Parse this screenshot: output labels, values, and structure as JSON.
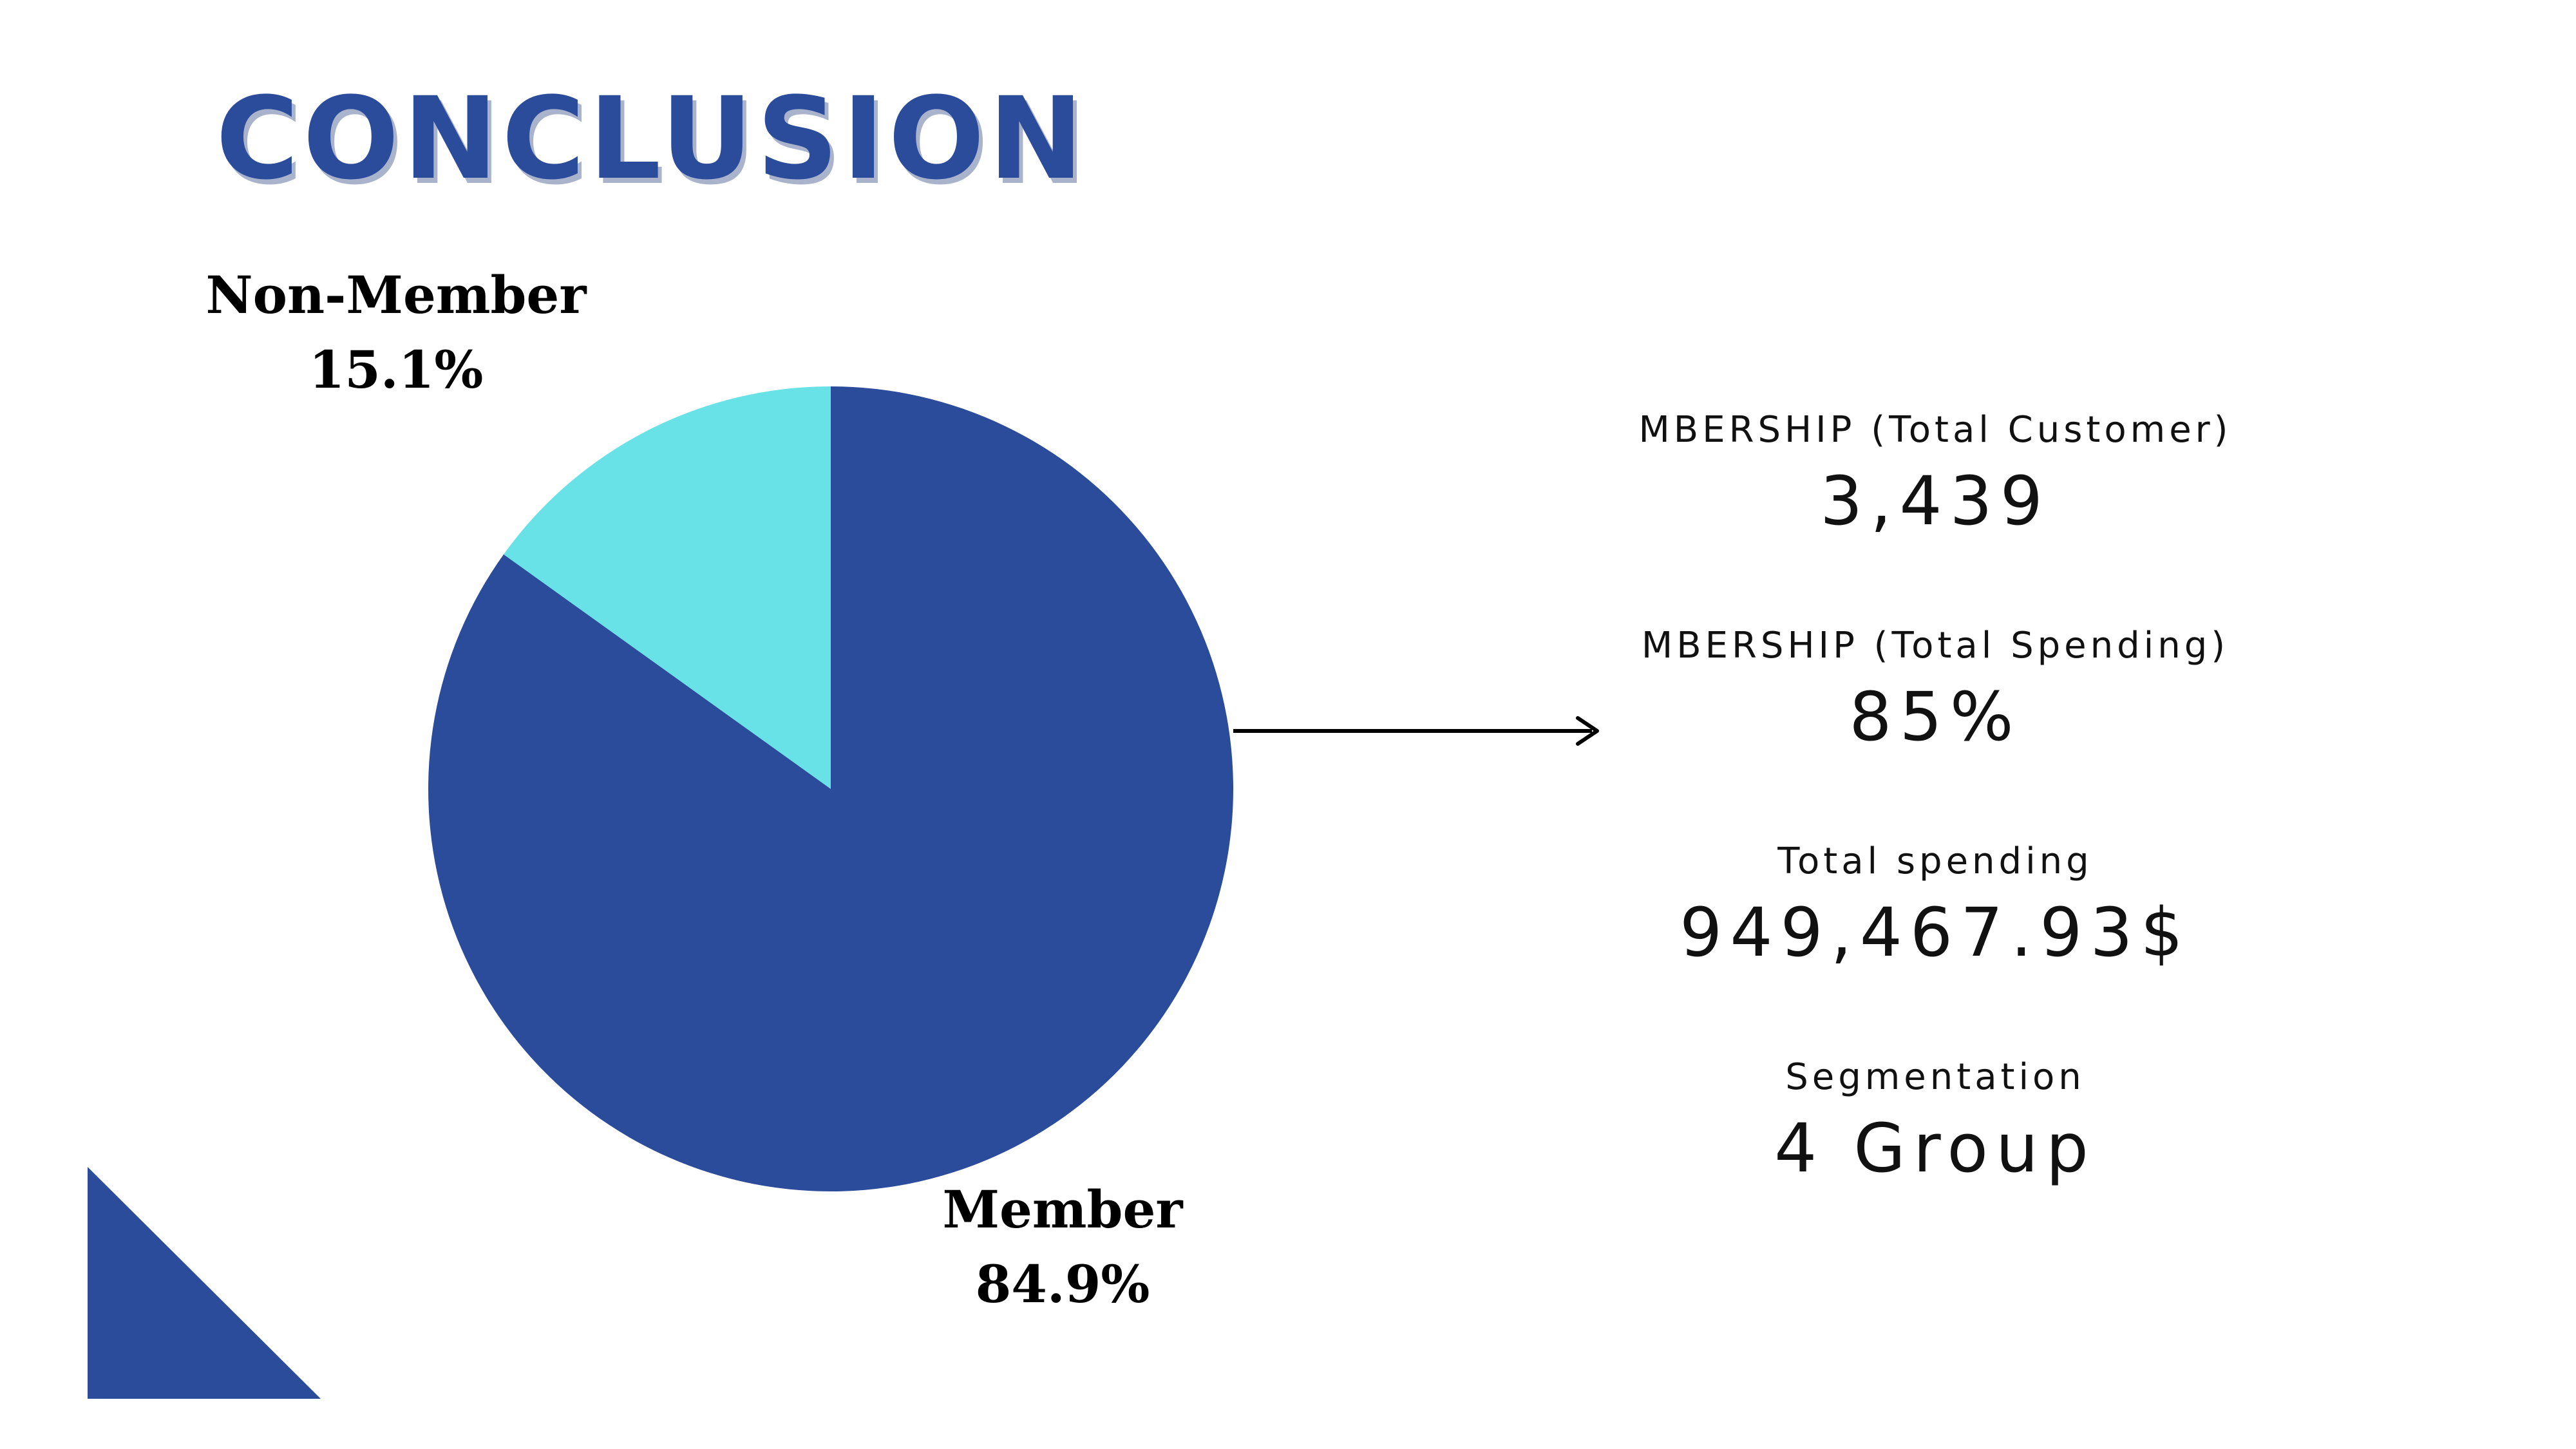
{
  "slide": {
    "title": "CONCLUSION"
  },
  "colors": {
    "member": "#2B4B9B",
    "non_member": "#69E2E7",
    "title": "#2B4B9B",
    "accent_triangle": "#2B4B9B"
  },
  "chart_data": {
    "type": "pie",
    "title": "",
    "slices": [
      {
        "name": "Member",
        "value": 84.9,
        "label": "84.9%"
      },
      {
        "name": "Non-Member",
        "value": 15.1,
        "label": "15.1%"
      }
    ],
    "start_angle_deg": 0,
    "direction": "clockwise"
  },
  "stats": [
    {
      "label": "MBERSHIP (Total Customer)",
      "value": "3,439"
    },
    {
      "label": "MBERSHIP (Total Spending)",
      "value": "85%"
    },
    {
      "label": "Total spending",
      "value": "949,467.93$"
    },
    {
      "label": "Segmentation",
      "value": "4 Group"
    }
  ]
}
